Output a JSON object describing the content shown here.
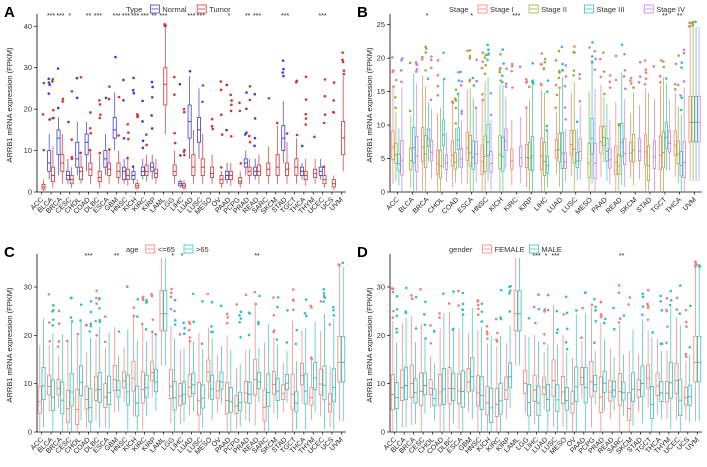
{
  "chart_data": [
    {
      "panel": "A",
      "type": "box",
      "ylabel": "ARRB1 mRNA expression (FPKM)",
      "ylim": [
        0,
        42
      ],
      "yticks": [
        0,
        10,
        20,
        30,
        40
      ],
      "legend": {
        "title": "Type",
        "entries": [
          "Normal",
          "Tumor"
        ],
        "colors": [
          "#3b3bd6",
          "#d93030"
        ]
      },
      "categories": [
        "ACC",
        "BLCA",
        "BRCA",
        "CESC",
        "CHOL",
        "COAD",
        "DLBC",
        "ESCA",
        "GBM",
        "HNSC",
        "KICH",
        "KIRC",
        "KIRP",
        "LAML",
        "LGG",
        "LIHC",
        "LUAD",
        "LUSC",
        "MESO",
        "OV",
        "PAAD",
        "PCPG",
        "PRAD",
        "READ",
        "SARC",
        "SKCM",
        "STAD",
        "TGCT",
        "THCA",
        "THYM",
        "UCEC",
        "UCS",
        "UVM"
      ],
      "significance": [
        "",
        "***",
        "***",
        "*",
        "",
        "**",
        "***",
        "",
        "***",
        "***",
        "***",
        "***",
        "**",
        "***",
        "",
        "",
        "***",
        "***",
        "",
        "",
        "*",
        "",
        "**",
        "***",
        "",
        "",
        "***",
        "",
        "",
        "",
        "***",
        "",
        ""
      ],
      "series": [
        {
          "name": "Normal",
          "boxes": [
            null,
            [
              3,
              5,
              7,
              10,
              14
            ],
            [
              4,
              9,
              13,
              15,
              18
            ],
            [
              2,
              3,
              4,
              5,
              8
            ],
            [
              4,
              6,
              8,
              12,
              17
            ],
            [
              5,
              9,
              12,
              14,
              17
            ],
            null,
            [
              4,
              6,
              8,
              10,
              14
            ],
            [
              10,
              13,
              15,
              18,
              24
            ],
            [
              2,
              3,
              5,
              6,
              8
            ],
            [
              2,
              3,
              4,
              5,
              6
            ],
            [
              3,
              4,
              5,
              6,
              8
            ],
            [
              3,
              5,
              6,
              7,
              9
            ],
            null,
            null,
            [
              1,
              1.5,
              2,
              2.5,
              3
            ],
            [
              8,
              13,
              17,
              21,
              28
            ],
            [
              8,
              12,
              15,
              18,
              25
            ],
            null,
            null,
            [
              2,
              3,
              4,
              5,
              7
            ],
            null,
            [
              4,
              6,
              7,
              8,
              10
            ],
            [
              3,
              4,
              5,
              6,
              8
            ],
            null,
            null,
            [
              7,
              10,
              13,
              16,
              22
            ],
            null,
            [
              3,
              4,
              5,
              6,
              7
            ],
            null,
            [
              3,
              4,
              5,
              6,
              8
            ],
            null,
            null
          ]
        },
        {
          "name": "Tumor",
          "boxes": [
            [
              0.2,
              0.7,
              1.2,
              1.8,
              3
            ],
            [
              1,
              2.5,
              4,
              6,
              11
            ],
            [
              2,
              5,
              7,
              9,
              14
            ],
            [
              1,
              2,
              3,
              4,
              6
            ],
            [
              2,
              3,
              5,
              6,
              9
            ],
            [
              2,
              4,
              5.5,
              7,
              10
            ],
            [
              1,
              2.5,
              3.5,
              5,
              9
            ],
            [
              2,
              4,
              5.5,
              7,
              10
            ],
            [
              2,
              3.5,
              5,
              7,
              10
            ],
            [
              1.5,
              3,
              4,
              5.5,
              8
            ],
            [
              0.5,
              1,
              1.5,
              2,
              3
            ],
            [
              2.5,
              4,
              5,
              6.5,
              9
            ],
            [
              2,
              3.5,
              4.5,
              5.5,
              8
            ],
            [
              14,
              21,
              26,
              30,
              40
            ],
            [
              2,
              4,
              5,
              6.5,
              10
            ],
            [
              0.5,
              1,
              1.5,
              2,
              3
            ],
            [
              2,
              4,
              6,
              9,
              15
            ],
            [
              2,
              4,
              6,
              8,
              14
            ],
            [
              2,
              3.5,
              4.5,
              6,
              9
            ],
            [
              1,
              2,
              3,
              4,
              5
            ],
            [
              1.5,
              3,
              4,
              5,
              7
            ],
            [
              1,
              2,
              2.5,
              3.5,
              5
            ],
            [
              2,
              4,
              5,
              6,
              8
            ],
            [
              2,
              4,
              5,
              6.5,
              9
            ],
            [
              2,
              4,
              5.5,
              7,
              11
            ],
            [
              2,
              4,
              6,
              9,
              16
            ],
            [
              2,
              4,
              5.5,
              7,
              12
            ],
            [
              2,
              4,
              6,
              8,
              13
            ],
            [
              1.5,
              3,
              4,
              5,
              8
            ],
            [
              2,
              3.5,
              4.5,
              5.5,
              8
            ],
            [
              1,
              2,
              3,
              4,
              6
            ],
            [
              0.5,
              1.2,
              2,
              3,
              4
            ],
            [
              5,
              9,
              13,
              17,
              28
            ]
          ]
        }
      ]
    },
    {
      "panel": "B",
      "type": "box",
      "ylabel": "ARRB1 mRNA expression (FPKM)",
      "ylim": [
        0,
        26
      ],
      "yticks": [
        0,
        5,
        10,
        15,
        20,
        25
      ],
      "legend": {
        "title": "Stage",
        "entries": [
          "Stage I",
          "Stage II",
          "Stage III",
          "Stage IV"
        ],
        "colors": [
          "#f08070",
          "#9ab030",
          "#30c0c0",
          "#c080e0"
        ]
      },
      "categories": [
        "ACC",
        "BLCA",
        "BRCA",
        "CHOL",
        "COAD",
        "ESCA",
        "HNSC",
        "KICH",
        "KIRC",
        "KIRP",
        "LIHC",
        "LUAD",
        "LUSC",
        "MESO",
        "PAAD",
        "READ",
        "SKCM",
        "STAD",
        "TGCT",
        "THCA",
        "UVM"
      ],
      "significance": [
        "",
        "",
        "*",
        "",
        "",
        "*",
        "",
        "",
        "***",
        "",
        "",
        "",
        "",
        "",
        "",
        "",
        "",
        "",
        "**",
        "**",
        ""
      ]
    },
    {
      "panel": "C",
      "type": "box",
      "ylabel": "ARRB1 mRNA expression (FPKM)",
      "ylim": [
        0,
        36
      ],
      "yticks": [
        0,
        10,
        20,
        30
      ],
      "legend": {
        "title": "age",
        "entries": [
          "<=65",
          ">65"
        ],
        "colors": [
          "#f08070",
          "#30c0c0"
        ]
      },
      "categories": [
        "ACC",
        "BLCA",
        "BRCA",
        "CESC",
        "CHOL",
        "COAD",
        "DLBC",
        "ESCA",
        "GBM",
        "HNSC",
        "KICH",
        "KIRC",
        "KIRP",
        "LAML",
        "LGG",
        "LIHC",
        "LUAD",
        "LUSC",
        "MESO",
        "OV",
        "PAAD",
        "PCPG",
        "PRAD",
        "READ",
        "SARC",
        "SKCM",
        "STAD",
        "TGCT",
        "THCA",
        "THYM",
        "UCEC",
        "UCS",
        "UVM"
      ],
      "significance": [
        "",
        "",
        "",
        "",
        "",
        "***",
        "",
        "",
        "**",
        "",
        "",
        "",
        "",
        "",
        "*",
        "*",
        "",
        "",
        "",
        "",
        "",
        "",
        "",
        "**",
        "",
        "",
        "",
        "",
        "",
        "",
        "",
        "",
        ""
      ]
    },
    {
      "panel": "D",
      "type": "box",
      "ylabel": "ARRB1 mRNA expression (FPKM)",
      "ylim": [
        0,
        36
      ],
      "yticks": [
        0,
        10,
        20,
        30
      ],
      "legend": {
        "title": "gender",
        "entries": [
          "FEMALE",
          "MALE"
        ],
        "colors": [
          "#f08070",
          "#30c0c0"
        ]
      },
      "categories": [
        "ACC",
        "BLCA",
        "BRCA",
        "CESC",
        "CHOL",
        "COAD",
        "DLBC",
        "ESCA",
        "GBM",
        "HNSC",
        "KICH",
        "KIRC",
        "KIRP",
        "LAML",
        "LGG",
        "LIHC",
        "LUAD",
        "LUSC",
        "MESO",
        "OV",
        "PAAD",
        "PCPG",
        "PRAD",
        "READ",
        "SARC",
        "SKCM",
        "STAD",
        "TGCT",
        "THCA",
        "THYM",
        "UCEC",
        "UCS",
        "UVM"
      ],
      "significance": [
        "",
        "",
        "",
        "",
        "",
        "",
        "",
        "",
        "",
        "",
        "",
        "",
        "",
        "",
        "",
        "***",
        "*",
        "***",
        "",
        "",
        "",
        "",
        "",
        "",
        "**",
        "",
        "",
        "",
        "",
        "",
        "",
        "",
        ""
      ]
    }
  ]
}
